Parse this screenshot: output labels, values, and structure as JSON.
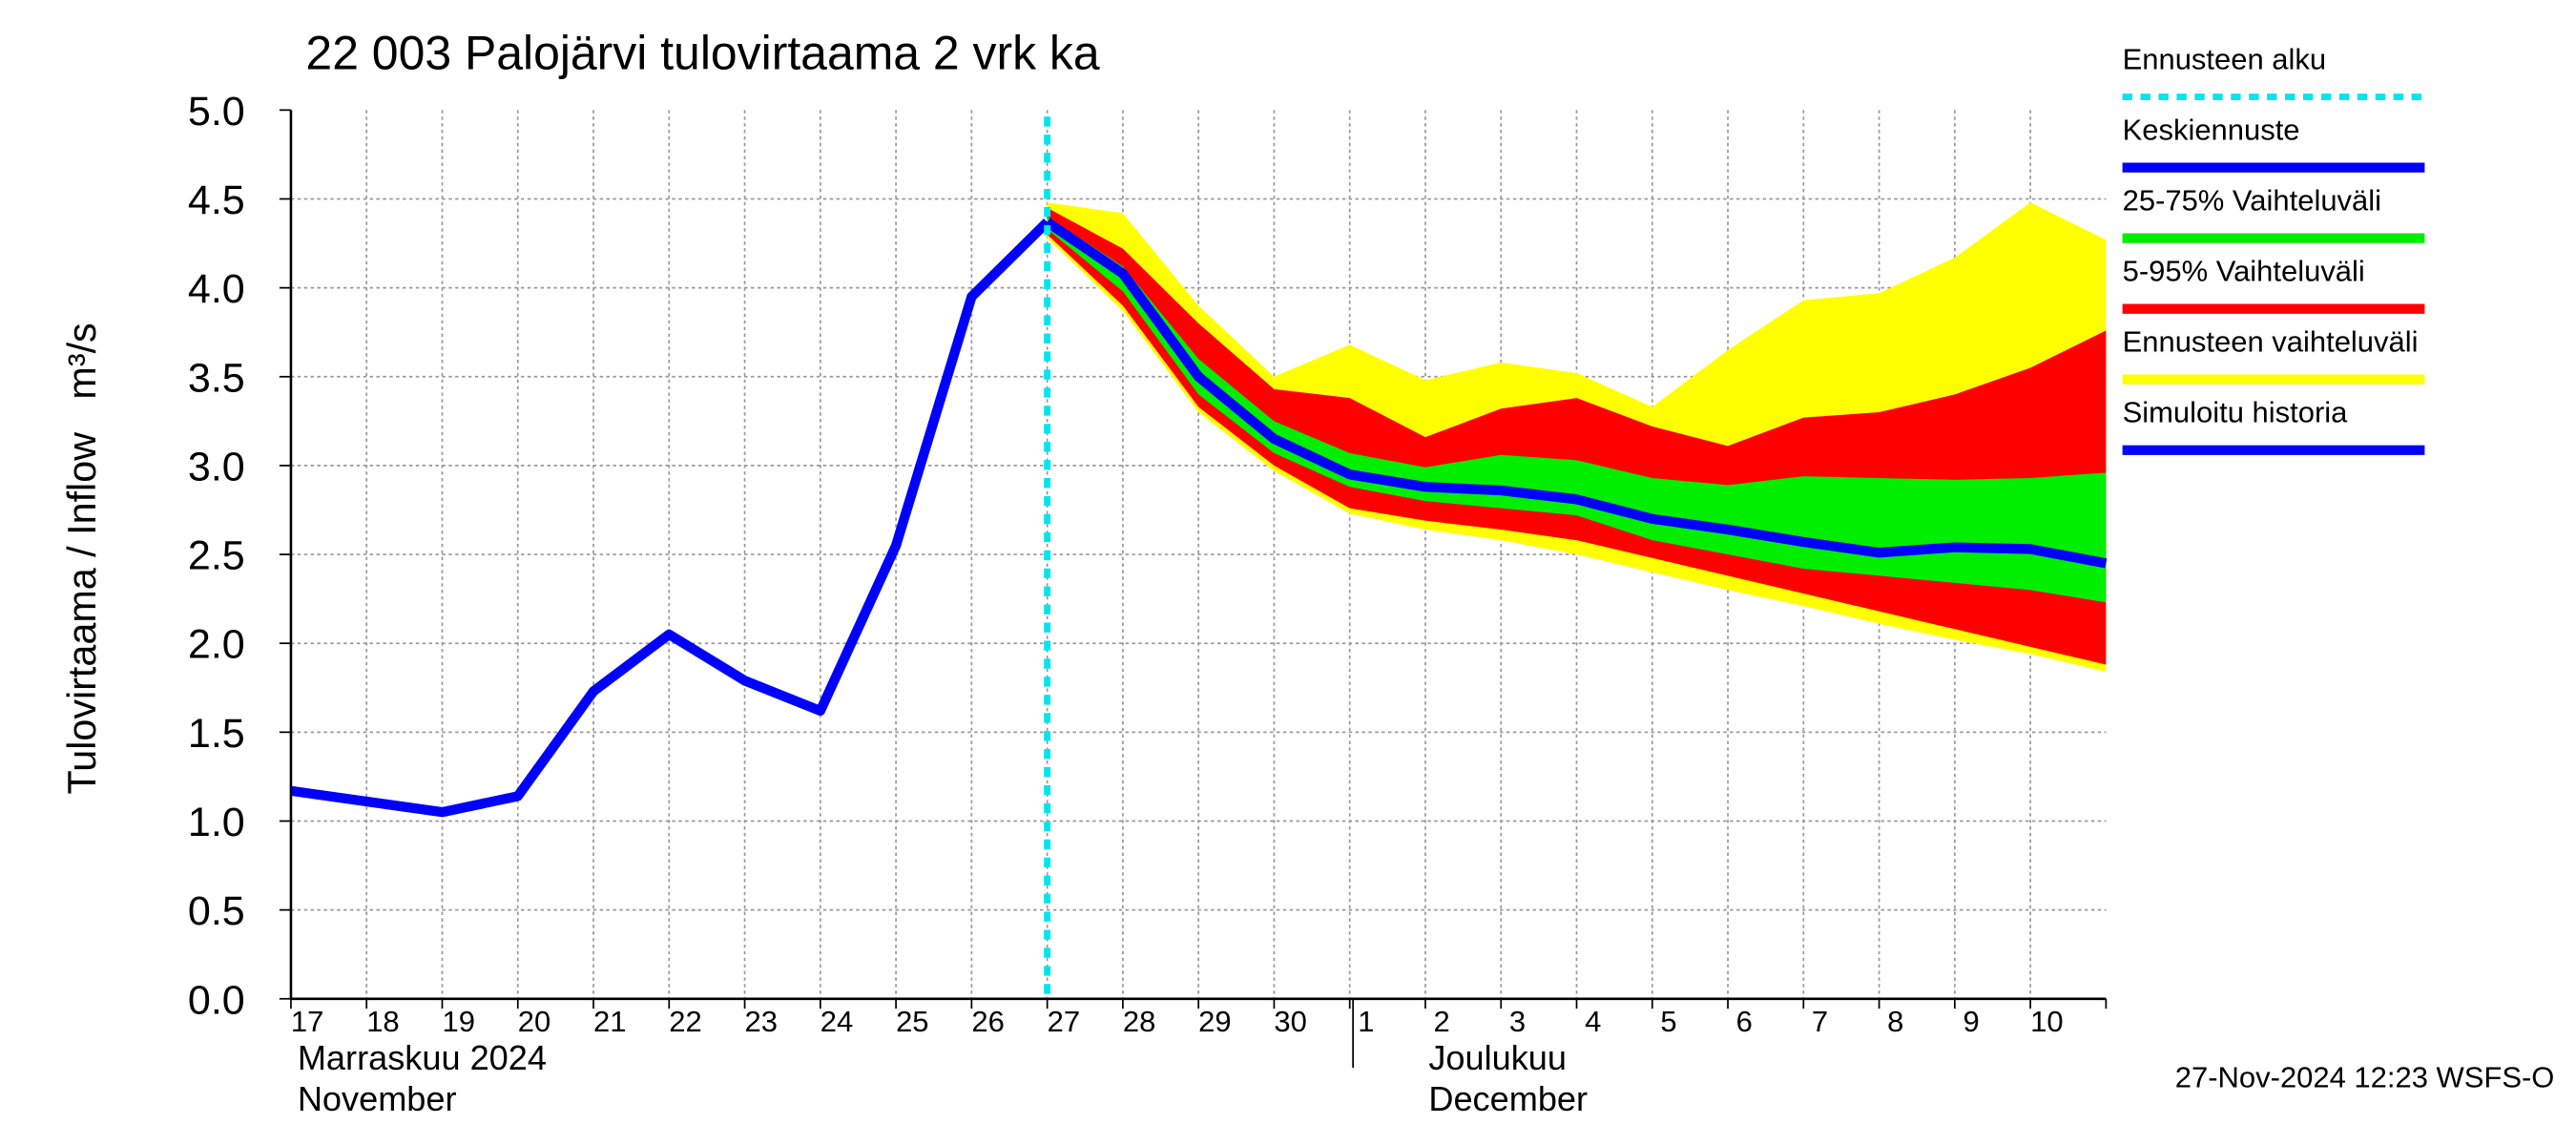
{
  "chart_data": {
    "type": "band-forecast",
    "title": "22 003 Palojärvi tulovirtaama 2 vrk ka",
    "y_label": "Tulovirtaama / Inflow   m³/s",
    "month_labels": [
      {
        "at": "17",
        "lines": [
          "Marraskuu 2024",
          "November"
        ]
      },
      {
        "at": "1",
        "lines": [
          "Joulukuu",
          "December"
        ]
      }
    ],
    "timestamp": "27-Nov-2024 12:23 WSFS-O",
    "categories": [
      "17",
      "18",
      "19",
      "20",
      "21",
      "22",
      "23",
      "24",
      "25",
      "26",
      "27",
      "28",
      "29",
      "30",
      "1",
      "2",
      "3",
      "4",
      "5",
      "6",
      "7",
      "8",
      "9",
      "10",
      null
    ],
    "ylim": [
      0,
      5
    ],
    "yticks": [
      {
        "value": 0,
        "label": "0.0"
      },
      {
        "value": 0.5,
        "label": "0.5"
      },
      {
        "value": 1,
        "label": "1.0"
      },
      {
        "value": 1.5,
        "label": "1.5"
      },
      {
        "value": 2,
        "label": "2.0"
      },
      {
        "value": 2.5,
        "label": "2.5"
      },
      {
        "value": 3,
        "label": "3.0"
      },
      {
        "value": 3.5,
        "label": "3.5"
      },
      {
        "value": 4,
        "label": "4.0"
      },
      {
        "value": 4.5,
        "label": "4.5"
      },
      {
        "value": 5,
        "label": "5.0"
      }
    ],
    "grid": true,
    "series": [
      {
        "name": "Ennusteen alku",
        "color": "#00e5ee",
        "kind": "vline",
        "at": "27"
      },
      {
        "name": "Keskiennuste",
        "color": "#0000ff",
        "kind": "line",
        "values": [
          null,
          null,
          null,
          null,
          null,
          null,
          null,
          null,
          null,
          null,
          4.37,
          4.08,
          3.5,
          3.15,
          2.95,
          2.88,
          2.86,
          2.81,
          2.7,
          2.64,
          2.57,
          2.51,
          2.54,
          2.53,
          2.45
        ]
      },
      {
        "name": "25-75% Vaihteluväli",
        "color": "#00ee00",
        "kind": "band",
        "lower": [
          null,
          null,
          null,
          null,
          null,
          null,
          null,
          null,
          null,
          null,
          4.33,
          3.98,
          3.4,
          3.07,
          2.88,
          2.8,
          2.76,
          2.72,
          2.58,
          2.5,
          2.42,
          2.38,
          2.34,
          2.3,
          2.23
        ],
        "upper": [
          null,
          null,
          null,
          null,
          null,
          null,
          null,
          null,
          null,
          null,
          4.4,
          4.12,
          3.6,
          3.25,
          3.07,
          2.99,
          3.06,
          3.03,
          2.93,
          2.89,
          2.94,
          2.93,
          2.92,
          2.93,
          2.96
        ]
      },
      {
        "name": "5-95% Vaihteluväli",
        "color": "#ff0000",
        "kind": "band",
        "lower": [
          null,
          null,
          null,
          null,
          null,
          null,
          null,
          null,
          null,
          null,
          4.3,
          3.9,
          3.33,
          3.0,
          2.76,
          2.69,
          2.64,
          2.58,
          2.48,
          2.38,
          2.28,
          2.18,
          2.08,
          1.98,
          1.88
        ],
        "upper": [
          null,
          null,
          null,
          null,
          null,
          null,
          null,
          null,
          null,
          null,
          4.45,
          4.22,
          3.8,
          3.43,
          3.38,
          3.16,
          3.32,
          3.38,
          3.22,
          3.11,
          3.27,
          3.3,
          3.4,
          3.55,
          3.76
        ]
      },
      {
        "name": "Ennusteen vaihteluväli",
        "color": "#ffff00",
        "kind": "band",
        "lower": [
          null,
          null,
          null,
          null,
          null,
          null,
          null,
          null,
          null,
          null,
          4.28,
          3.87,
          3.3,
          2.97,
          2.73,
          2.64,
          2.58,
          2.5,
          2.4,
          2.3,
          2.21,
          2.11,
          2.02,
          1.94,
          1.84
        ],
        "upper": [
          null,
          null,
          null,
          null,
          null,
          null,
          null,
          null,
          null,
          null,
          4.48,
          4.42,
          3.9,
          3.5,
          3.68,
          3.48,
          3.58,
          3.52,
          3.33,
          3.65,
          3.93,
          3.97,
          4.17,
          4.48,
          4.27
        ]
      },
      {
        "name": "Simuloitu historia",
        "color": "#0000ff",
        "kind": "line",
        "values": [
          1.17,
          1.11,
          1.05,
          1.14,
          1.73,
          2.05,
          1.79,
          1.62,
          2.55,
          3.95,
          4.37,
          null,
          null,
          null,
          null,
          null,
          null,
          null,
          null,
          null,
          null,
          null,
          null,
          null,
          null
        ]
      }
    ]
  }
}
